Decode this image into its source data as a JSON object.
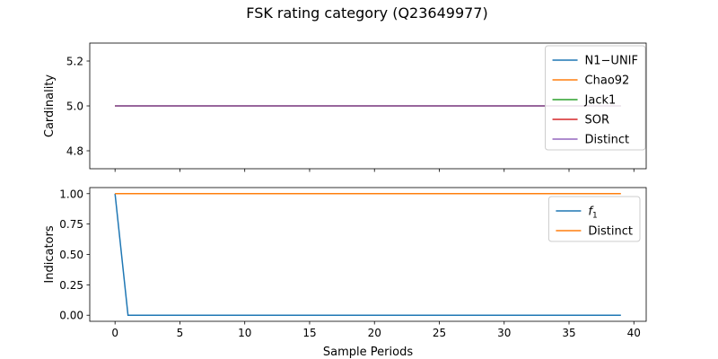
{
  "figure_title": "FSK rating category (Q23649977)",
  "chart_data": [
    {
      "type": "line",
      "ylabel": "Cardinality",
      "xlabel": "",
      "xlim": [
        -1.95,
        40.95
      ],
      "ylim": [
        4.72,
        5.28
      ],
      "xticks": [
        0,
        5,
        10,
        15,
        20,
        25,
        30,
        35,
        40
      ],
      "yticks": [
        4.8,
        5.0,
        5.2
      ],
      "ytick_labels": [
        "4.8",
        "5.0",
        "5.2"
      ],
      "show_xtick_labels": false,
      "grid": false,
      "legend_position": "top-right",
      "series": [
        {
          "name": "N1−UNIF",
          "color": "#1f77b4",
          "x_start": 0,
          "x_end": 39,
          "values": [
            5.0
          ]
        },
        {
          "name": "Chao92",
          "color": "#ff7f0e",
          "x_start": 0,
          "x_end": 39,
          "values": [
            5.0
          ]
        },
        {
          "name": "Jack1",
          "color": "#2ca02c",
          "x_start": 0,
          "x_end": 39,
          "values": [
            5.0
          ]
        },
        {
          "name": "SOR",
          "color": "#d62728",
          "x_start": 0,
          "x_end": 39,
          "values": [
            5.0
          ]
        },
        {
          "name": "Distinct",
          "color": "#9467bd",
          "x_start": 0,
          "x_end": 39,
          "values": [
            5.0
          ]
        }
      ]
    },
    {
      "type": "line",
      "ylabel": "Indicators",
      "xlabel": "Sample Periods",
      "xlim": [
        -1.95,
        40.95
      ],
      "ylim": [
        -0.05,
        1.05
      ],
      "xticks": [
        0,
        5,
        10,
        15,
        20,
        25,
        30,
        35,
        40
      ],
      "yticks": [
        0.0,
        0.25,
        0.5,
        0.75,
        1.0
      ],
      "ytick_labels": [
        "0.00",
        "0.25",
        "0.50",
        "0.75",
        "1.00"
      ],
      "show_xtick_labels": true,
      "grid": false,
      "legend_position": "top-right",
      "series": [
        {
          "name": "f1",
          "name_base": "f",
          "name_sub": "1",
          "color": "#1f77b4",
          "x_start": 0,
          "x_end": 39,
          "values": [
            1,
            0
          ]
        },
        {
          "name": "Distinct",
          "color": "#ff7f0e",
          "x_start": 0,
          "x_end": 39,
          "values": [
            1
          ]
        }
      ]
    }
  ]
}
